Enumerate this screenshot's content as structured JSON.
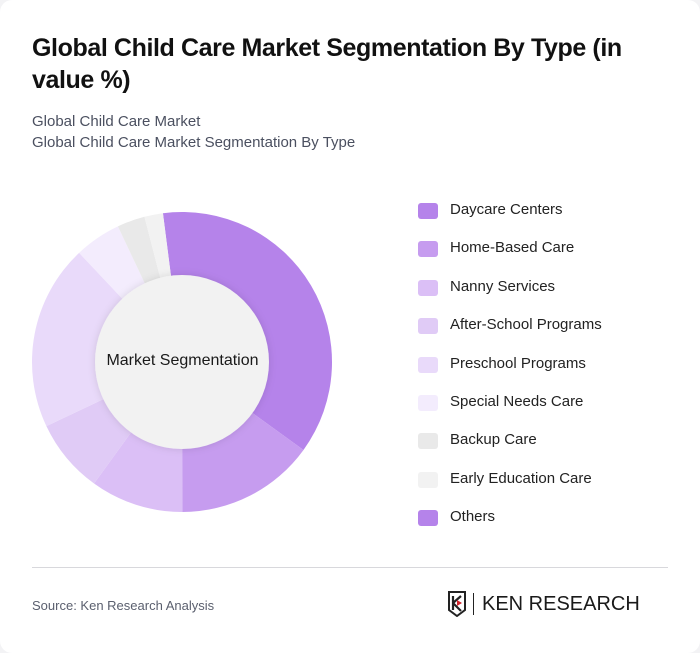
{
  "header": {
    "title": "Global Child Care Market Segmentation By Type (in value %)",
    "subtitle_1": "Global Child Care Market",
    "subtitle_2": "Global Child Care Market Segmentation By Type"
  },
  "chart": {
    "center_label": "Market Segmentation"
  },
  "legend": {
    "items": [
      {
        "label": "Daycare Centers",
        "color": "#b583ea"
      },
      {
        "label": "Home-Based Care",
        "color": "#c69cef"
      },
      {
        "label": "Nanny Services",
        "color": "#dbbff6"
      },
      {
        "label": "After-School Programs",
        "color": "#e0cbf6"
      },
      {
        "label": "Preschool Programs",
        "color": "#e9dafa"
      },
      {
        "label": "Special Needs Care",
        "color": "#f3ecfd"
      },
      {
        "label": "Backup Care",
        "color": "#e9e9e9"
      },
      {
        "label": "Early Education Care",
        "color": "#f2f2f2"
      },
      {
        "label": "Others",
        "color": "#b583ea"
      }
    ]
  },
  "footer": {
    "source": "Source: Ken Research Analysis",
    "logo_text": "KEN RESEARCH"
  },
  "chart_data": {
    "type": "pie",
    "title": "Global Child Care Market Segmentation By Type (in value %)",
    "subtitle": "Global Child Care Market / Global Child Care Market Segmentation By Type",
    "donut": true,
    "center_text": "Market Segmentation",
    "categories": [
      "Daycare Centers",
      "Home-Based Care",
      "Nanny Services",
      "After-School Programs",
      "Preschool Programs",
      "Special Needs Care",
      "Backup Care",
      "Early Education Care",
      "Others"
    ],
    "values": [
      37,
      15,
      10,
      8,
      20,
      5,
      3,
      2,
      0
    ],
    "colors": [
      "#b583ea",
      "#c69cef",
      "#dbbff6",
      "#e0cbf6",
      "#e9dafa",
      "#f3ecfd",
      "#e9e9e9",
      "#f2f2f2",
      "#b583ea"
    ],
    "start_angle_deg": -7.3,
    "legend_position": "right",
    "source": "Source: Ken Research Analysis"
  }
}
